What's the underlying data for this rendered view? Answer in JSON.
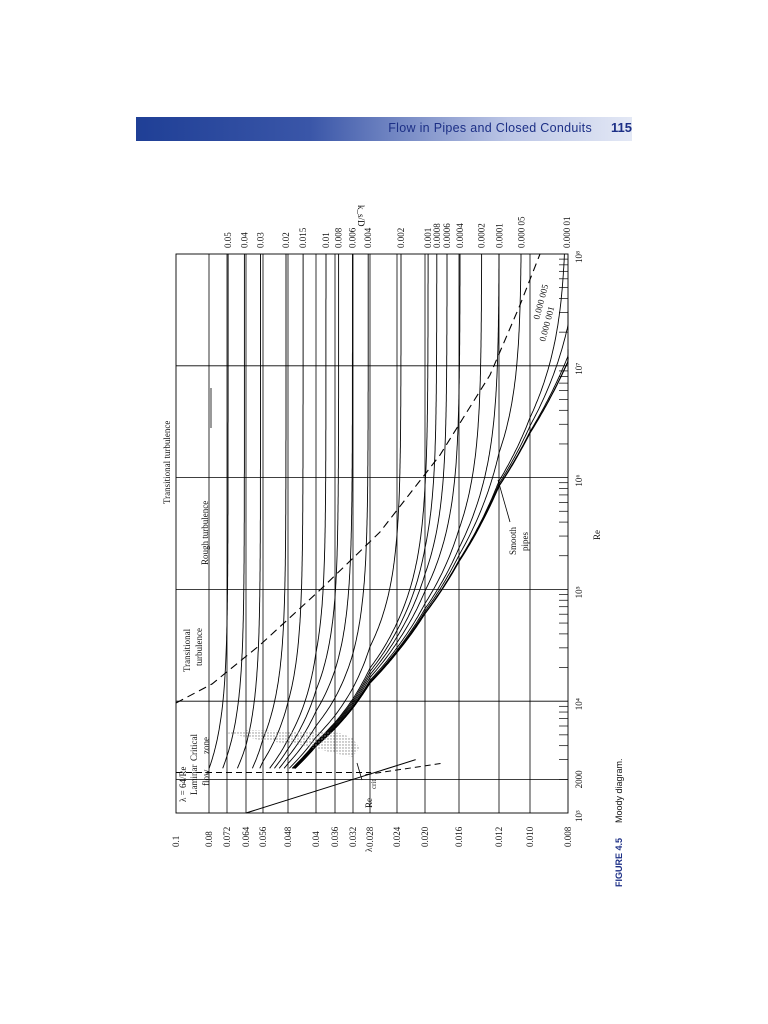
{
  "header": {
    "title": "Flow in Pipes and Closed Conduits",
    "page_number": "115"
  },
  "figure": {
    "label": "FIGURE 4.5",
    "caption": "Moody diagram."
  },
  "colors": {
    "header_band": "#2a4aa0",
    "header_text": "#1c2f86",
    "figure_label": "#1c2f86",
    "lines": "#000000",
    "hatch": "#888888"
  },
  "chart_data": {
    "type": "line",
    "orientation": "rotated 90 degrees counter-clockwise on the page",
    "xscale": "log",
    "xlabel": "Re",
    "ylabel": "λ",
    "right_axis_label": "k_s/D",
    "xlim": [
      1000,
      100000000
    ],
    "ylim": [
      0.008,
      0.1
    ],
    "x_tick_labels": [
      "10³",
      "2000",
      "10⁴",
      "10⁵",
      "10⁶",
      "10⁷",
      "10⁸"
    ],
    "x_tick_values": [
      1000,
      2000,
      10000,
      100000,
      1000000,
      10000000,
      100000000
    ],
    "y_tick_labels": [
      "0.1",
      "0.08",
      "0.072",
      "0.064",
      "0.056",
      "0.048",
      "0.04",
      "0.036",
      "0.032",
      "0.028",
      "0.024",
      "0.020",
      "0.016",
      "0.012",
      "0.010",
      "0.008"
    ],
    "y_tick_values": [
      0.1,
      0.08,
      0.072,
      0.064,
      0.056,
      0.048,
      0.04,
      0.036,
      0.032,
      0.028,
      0.024,
      0.02,
      0.016,
      0.012,
      0.01,
      0.008
    ],
    "relative_roughness_labels": [
      "0.05",
      "0.04",
      "0.03",
      "0.02",
      "0.015",
      "0.01",
      "0.008",
      "0.006",
      "0.004",
      "0.002",
      "0.001",
      "0.0008",
      "0.0006",
      "0.0004",
      "0.0002",
      "0.0001",
      "0.000 05",
      "0.000 01"
    ],
    "relative_roughness_values": [
      0.05,
      0.04,
      0.03,
      0.02,
      0.015,
      0.01,
      0.008,
      0.006,
      0.004,
      0.002,
      0.001,
      0.0008,
      0.0006,
      0.0004,
      0.0002,
      0.0001,
      5e-05,
      1e-05
    ],
    "extra_curve_labels": [
      "0.000 001",
      "0.000 005"
    ],
    "extra_curve_values": [
      1e-06,
      5e-06
    ],
    "annotations": {
      "laminar_equation": "λ = 64/Re",
      "laminar_flow": "Laminar flow",
      "critical_zone": "Critical zone",
      "transitional_turbulence_top": "Transitional turbulence",
      "transitional_turbulence_inner": "Transitional turbulence",
      "rough_turbulence": "Rough turbulence",
      "smooth_pipes": "Smooth pipes",
      "re_crit": "Re",
      "re_crit_sub": "crit"
    }
  }
}
